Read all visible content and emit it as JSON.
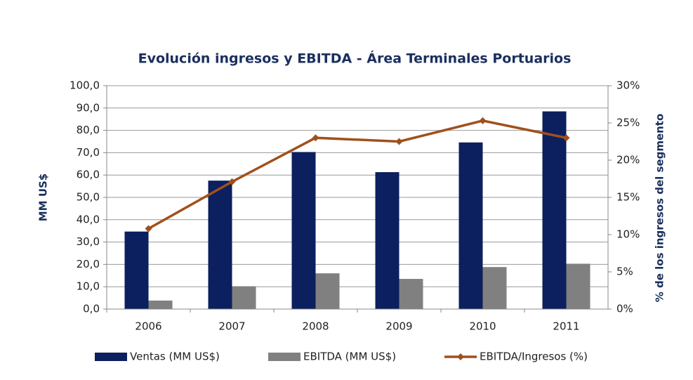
{
  "chart_data": {
    "type": "bar",
    "title": "Evolución ingresos y EBITDA - Área Terminales Portuarios",
    "y_label": "MM US$",
    "y2_label": "% de los ingresos del segmento",
    "categories": [
      "2006",
      "2007",
      "2008",
      "2009",
      "2010",
      "2011"
    ],
    "series": [
      {
        "name": "Ventas (MM US$)",
        "color": "#0c1f5e",
        "values": [
          34.7,
          57.5,
          70.3,
          61.3,
          74.6,
          88.5
        ]
      },
      {
        "name": "EBITDA (MM US$)",
        "color": "#808080",
        "values": [
          3.8,
          10.2,
          16.0,
          13.5,
          18.8,
          20.3
        ]
      },
      {
        "name": "EBITDA/Ingresos (%)",
        "color": "#a0501c",
        "type": "line",
        "axis": "y2",
        "values": [
          10.8,
          17.1,
          23.0,
          22.5,
          25.3,
          23.0
        ]
      }
    ],
    "ylim": [
      0,
      100
    ],
    "yticks": [
      {
        "value": 0,
        "label": "0,0"
      },
      {
        "value": 10,
        "label": "10,0"
      },
      {
        "value": 20,
        "label": "20,0"
      },
      {
        "value": 30,
        "label": "30,0"
      },
      {
        "value": 40,
        "label": "40,0"
      },
      {
        "value": 50,
        "label": "50,0"
      },
      {
        "value": 60,
        "label": "60,0"
      },
      {
        "value": 70,
        "label": "70,0"
      },
      {
        "value": 80,
        "label": "80,0"
      },
      {
        "value": 90,
        "label": "90,0"
      },
      {
        "value": 100,
        "label": "100,0"
      }
    ],
    "y2lim": [
      0,
      30
    ],
    "y2ticks": [
      {
        "value": 0,
        "label": "0%"
      },
      {
        "value": 5,
        "label": "5%"
      },
      {
        "value": 10,
        "label": "10%"
      },
      {
        "value": 15,
        "label": "15%"
      },
      {
        "value": 20,
        "label": "20%"
      },
      {
        "value": 25,
        "label": "25%"
      },
      {
        "value": 30,
        "label": "30%"
      }
    ],
    "grid": true,
    "legend": "bottom"
  }
}
